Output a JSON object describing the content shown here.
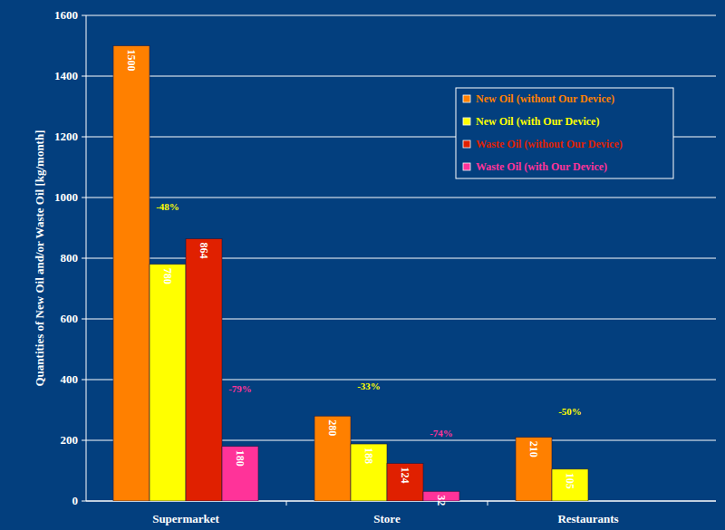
{
  "chart_data": {
    "type": "bar",
    "y_label": "Quantities of New Oil and/or Waste Oil [kg/month]",
    "categories": [
      "Supermarket",
      "Store",
      "Restaurants"
    ],
    "series": [
      {
        "name": "New Oil (without Our Device)",
        "color": "#ff8000",
        "values": [
          1500,
          280,
          210
        ]
      },
      {
        "name": "New Oil (with Our Device)",
        "color": "#ffff00",
        "values": [
          780,
          188,
          105
        ]
      },
      {
        "name": "Waste Oil (without Our Device)",
        "color": "#e02000",
        "values": [
          864,
          124,
          null
        ]
      },
      {
        "name": "Waste Oil (with Our Device)",
        "color": "#ff3399",
        "values": [
          180,
          32,
          null
        ]
      }
    ],
    "annotations": [
      {
        "text": "-48%",
        "category": "Supermarket",
        "series": "New Oil (with Our Device)"
      },
      {
        "text": "-79%",
        "category": "Supermarket",
        "series": "Waste Oil (with Our Device)"
      },
      {
        "text": "-33%",
        "category": "Store",
        "series": "New Oil (with Our Device)"
      },
      {
        "text": "-74%",
        "category": "Store",
        "series": "Waste Oil (with Our Device)"
      },
      {
        "text": "-50%",
        "category": "Restaurants",
        "series": "New Oil (with Our Device)"
      }
    ],
    "ylim": [
      0,
      1600
    ],
    "yticks": [
      0,
      200,
      400,
      600,
      800,
      1000,
      1200,
      1400,
      1600
    ],
    "grid": true,
    "legend": "upper right",
    "data_labels": true
  }
}
